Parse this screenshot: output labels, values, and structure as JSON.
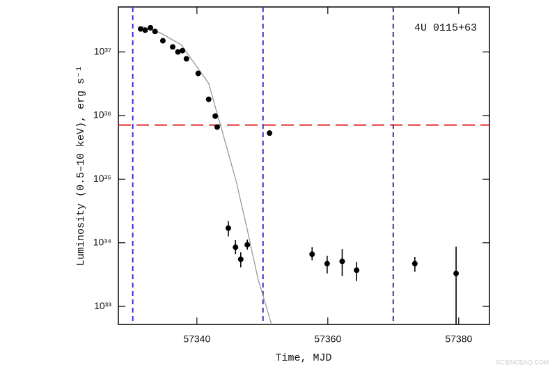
{
  "chart_data": {
    "type": "scatter",
    "annotation": "4U 0115+63",
    "xlabel": "Time, MJD",
    "ylabel": "Luminosity (0.5–10 keV), erg s⁻¹",
    "watermark": "SCIENCEAQ.COM",
    "log_y": true,
    "xlim": [
      57328,
      57384.7
    ],
    "ylim": [
      5.2e+32,
      5.1e+37
    ],
    "xticks": [
      57340,
      57360,
      57380
    ],
    "yticks": [
      {
        "value": 1e+33,
        "label": "10³³"
      },
      {
        "value": 1e+34,
        "label": "10³⁴"
      },
      {
        "value": 1e+35,
        "label": "10³⁵"
      },
      {
        "value": 1e+36,
        "label": "10³⁶"
      },
      {
        "value": 1e+37,
        "label": "10³⁷"
      }
    ],
    "points": {
      "color": "#000000",
      "x": [
        57331.4,
        57332.1,
        57332.9,
        57333.6,
        57334.8,
        57336.3,
        57337.1,
        57337.8,
        57338.4,
        57340.2,
        57341.8,
        57342.8,
        57343.1,
        57351.1,
        57344.8,
        57345.9,
        57346.7,
        57347.7,
        57357.6,
        57359.9,
        57362.2,
        57364.4,
        57373.3,
        57379.6
      ],
      "values": [
        2.3e+37,
        2.2e+37,
        2.4e+37,
        2.1e+37,
        1.5e+37,
        1.2e+37,
        1e+37,
        1.05e+37,
        7.8e+36,
        4.6e+36,
        1.8e+36,
        9.8e+35,
        6.6e+35,
        5.3e+35,
        1.7e+34,
        8.5e+33,
        5.5e+33,
        9.3e+33,
        6.6e+33,
        4.7e+33,
        5.1e+33,
        3.7e+33,
        4.7e+33,
        3.3e+33
      ],
      "lower": [
        null,
        null,
        null,
        null,
        null,
        null,
        null,
        null,
        null,
        null,
        null,
        null,
        null,
        null,
        1.26e+34,
        6.6e+33,
        4.1e+33,
        7.8e+33,
        5.3e+33,
        3.3e+33,
        3e+33,
        2.5e+33,
        3.5e+33,
        5.2e+32
      ],
      "upper": [
        null,
        null,
        null,
        null,
        null,
        null,
        null,
        null,
        null,
        null,
        null,
        null,
        null,
        null,
        2.2e+34,
        1.1e+34,
        7.1e+33,
        1.12e+34,
        8.5e+33,
        6.2e+33,
        7.9e+33,
        5e+33,
        6e+33,
        8.7e+33
      ]
    },
    "model": {
      "color": "#999999",
      "x": [
        57331.7,
        57334.4,
        57337.6,
        57341.8,
        57343.9,
        57346.0,
        57347.7,
        57349.3,
        57351.4
      ],
      "values": [
        2.5e+37,
        2e+37,
        1.3e+37,
        3.2e+36,
        5.5e+35,
        9.3e+34,
        1.6e+34,
        2.8e+33,
        5.2e+32
      ]
    },
    "vlines": {
      "color": "#3a2bd6",
      "x": [
        57330.2,
        57350.1,
        57370.0
      ]
    },
    "hline": {
      "color": "#e0262b",
      "value": 7.1e+35
    }
  }
}
